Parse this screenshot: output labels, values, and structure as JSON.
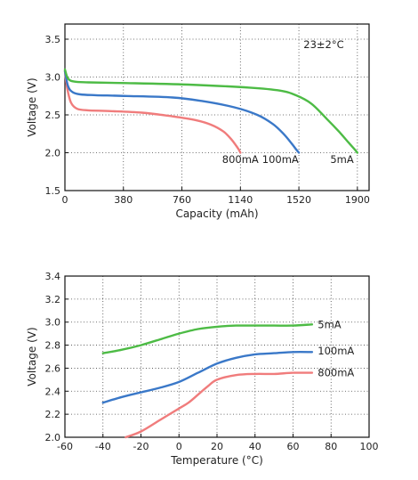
{
  "chart_data": [
    {
      "type": "line",
      "title": "",
      "xlabel": "Capacity (mAh)",
      "ylabel": "Voltage (V)",
      "xlim": [
        0,
        1976
      ],
      "ylim": [
        1.5,
        3.7
      ],
      "xticks": [
        0,
        380,
        760,
        1140,
        1520,
        1900
      ],
      "yticks": [
        1.5,
        2.0,
        2.5,
        3.0,
        3.5
      ],
      "ytick_labels": [
        "1.5",
        "2.0",
        "2.5",
        "3.0",
        "3.5"
      ],
      "grid": true,
      "annotations": [
        {
          "text": "23±2°C",
          "x": 1550,
          "y": 3.38
        }
      ],
      "series": [
        {
          "name": "800mA",
          "color": "#f07c7c",
          "label_at": {
            "x": 1140,
            "y": 1.91
          },
          "x": [
            0,
            15,
            40,
            80,
            150,
            300,
            500,
            700,
            850,
            950,
            1030,
            1080,
            1110,
            1130,
            1140
          ],
          "y": [
            3.08,
            2.85,
            2.66,
            2.58,
            2.56,
            2.55,
            2.53,
            2.48,
            2.43,
            2.37,
            2.28,
            2.18,
            2.1,
            2.04,
            2.0
          ]
        },
        {
          "name": "100mA",
          "color": "#3a78c8",
          "label_at": {
            "x": 1400,
            "y": 1.91
          },
          "x": [
            0,
            20,
            50,
            100,
            200,
            400,
            700,
            900,
            1100,
            1250,
            1350,
            1420,
            1470,
            1500,
            1520
          ],
          "y": [
            3.08,
            2.88,
            2.8,
            2.77,
            2.76,
            2.75,
            2.73,
            2.68,
            2.6,
            2.5,
            2.38,
            2.25,
            2.13,
            2.05,
            2.0
          ]
        },
        {
          "name": "5mA",
          "color": "#4dbb45",
          "label_at": {
            "x": 1800,
            "y": 1.91
          },
          "x": [
            0,
            20,
            60,
            150,
            400,
            800,
            1200,
            1400,
            1500,
            1600,
            1700,
            1780,
            1840,
            1880,
            1900
          ],
          "y": [
            3.1,
            2.98,
            2.94,
            2.93,
            2.92,
            2.9,
            2.86,
            2.82,
            2.76,
            2.65,
            2.45,
            2.28,
            2.14,
            2.05,
            2.0
          ]
        }
      ]
    },
    {
      "type": "line",
      "title": "",
      "xlabel": "Temperature (°C)",
      "ylabel": "Voltage (V)",
      "xlim": [
        -60,
        100
      ],
      "ylim": [
        2.0,
        3.4
      ],
      "xticks": [
        -60,
        -40,
        -20,
        0,
        20,
        40,
        60,
        80,
        100
      ],
      "yticks": [
        2.0,
        2.2,
        2.4,
        2.6,
        2.8,
        3.0,
        3.2,
        3.4
      ],
      "ytick_labels": [
        "2.0",
        "2.2",
        "2.4",
        "2.6",
        "2.8",
        "3.0",
        "3.2",
        "3.4"
      ],
      "grid": true,
      "series": [
        {
          "name": "5mA",
          "color": "#4dbb45",
          "label_at": {
            "x": 73,
            "y": 2.98
          },
          "x": [
            -40,
            -30,
            -20,
            -10,
            0,
            10,
            20,
            30,
            40,
            50,
            60,
            70
          ],
          "y": [
            2.73,
            2.76,
            2.8,
            2.85,
            2.9,
            2.94,
            2.96,
            2.97,
            2.97,
            2.97,
            2.97,
            2.98
          ]
        },
        {
          "name": "100mA",
          "color": "#3a78c8",
          "label_at": {
            "x": 73,
            "y": 2.75
          },
          "x": [
            -40,
            -30,
            -20,
            -10,
            0,
            10,
            20,
            30,
            40,
            50,
            60,
            70
          ],
          "y": [
            2.3,
            2.35,
            2.39,
            2.43,
            2.48,
            2.56,
            2.64,
            2.69,
            2.72,
            2.73,
            2.74,
            2.74
          ]
        },
        {
          "name": "800mA",
          "color": "#f07c7c",
          "label_at": {
            "x": 73,
            "y": 2.56
          },
          "x": [
            -28,
            -20,
            -10,
            0,
            5,
            10,
            15,
            20,
            30,
            40,
            50,
            60,
            70
          ],
          "y": [
            2.0,
            2.05,
            2.15,
            2.25,
            2.3,
            2.37,
            2.44,
            2.5,
            2.54,
            2.55,
            2.55,
            2.56,
            2.56
          ]
        }
      ]
    }
  ]
}
